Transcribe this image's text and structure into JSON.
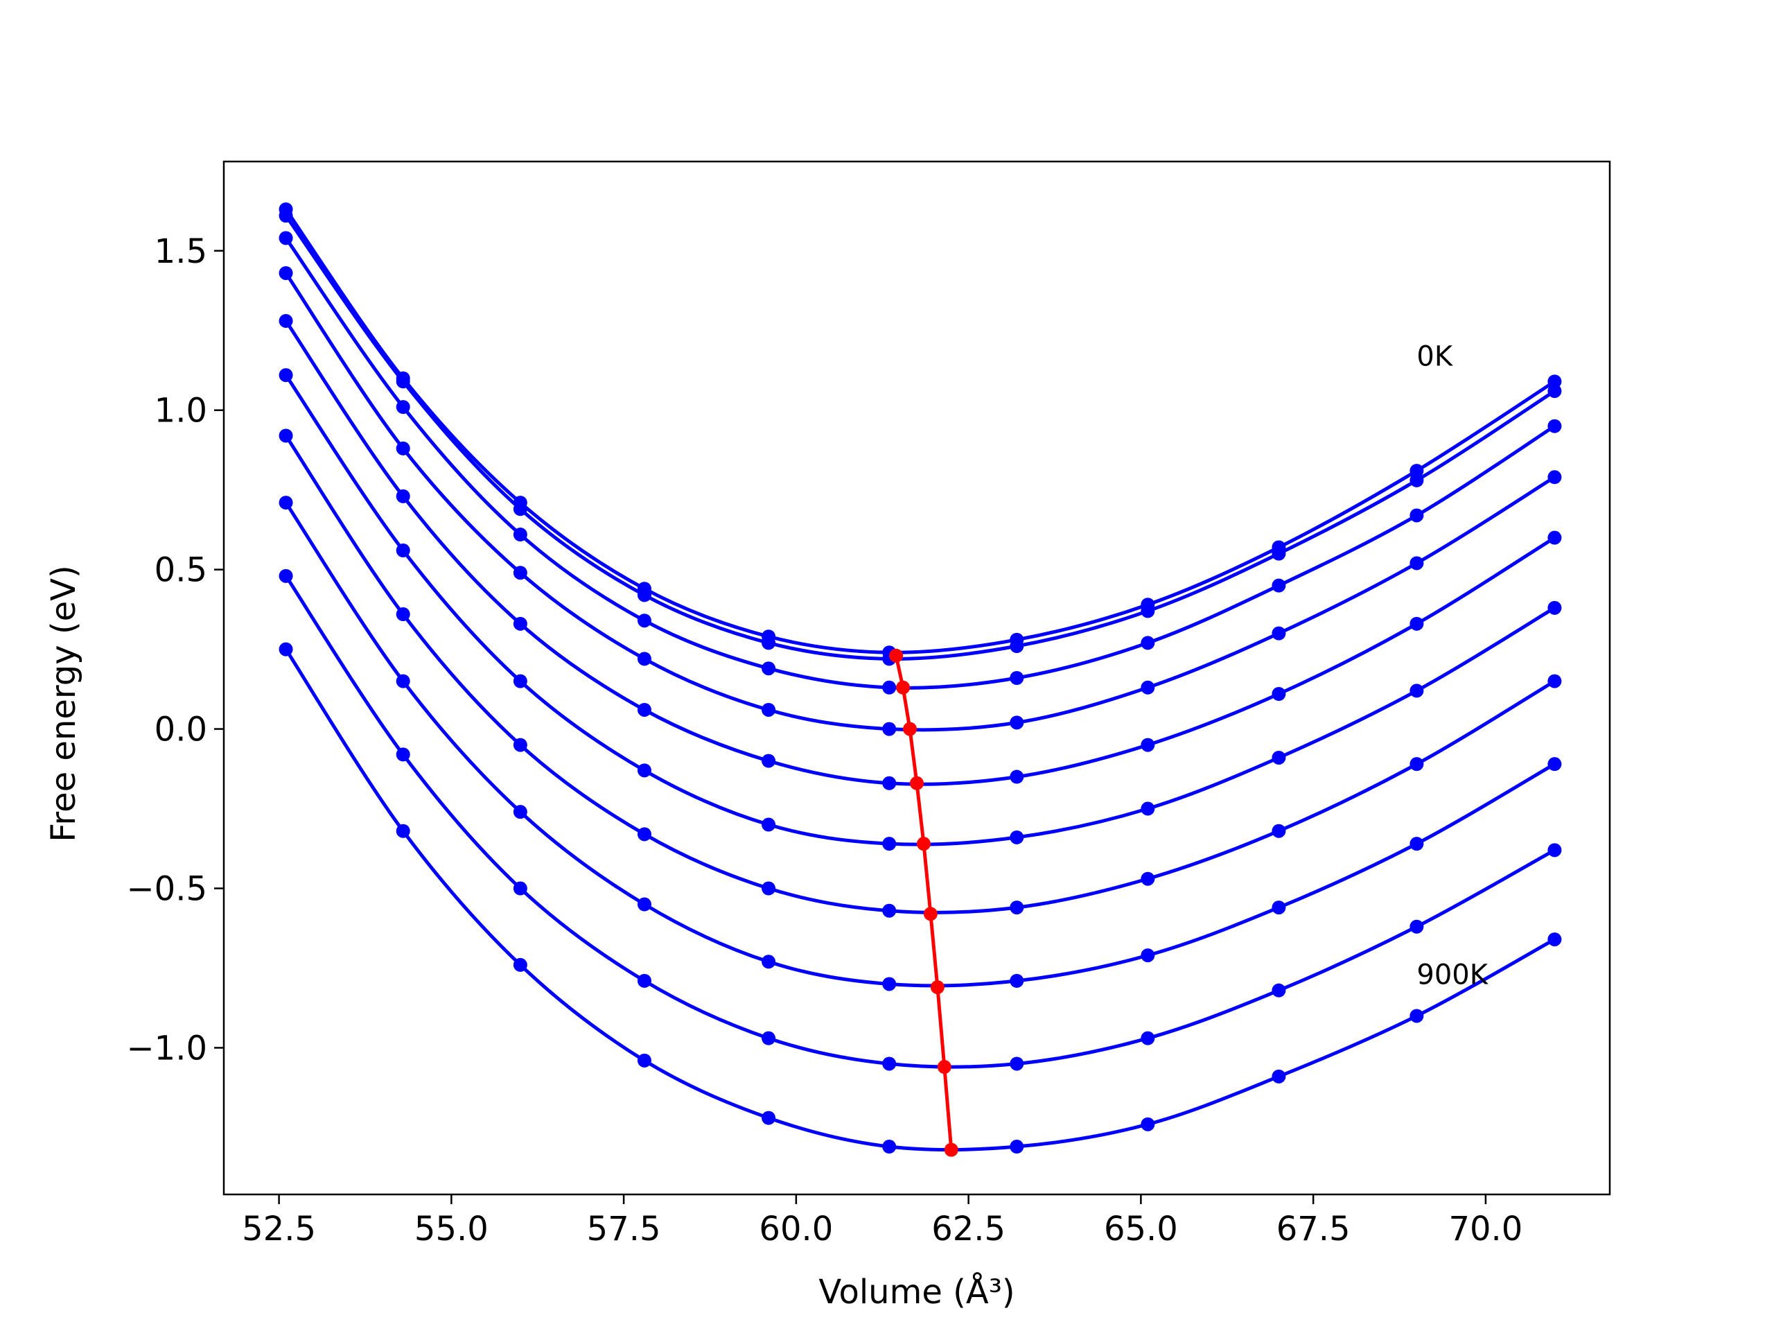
{
  "chart_data": {
    "type": "line",
    "xlabel": "Volume (Å³)",
    "ylabel": "Free energy (eV)",
    "xlim": [
      51.7,
      71.8
    ],
    "ylim": [
      -1.46,
      1.78
    ],
    "xticks": [
      52.5,
      55.0,
      57.5,
      60.0,
      62.5,
      65.0,
      67.5,
      70.0
    ],
    "xtick_labels": [
      "52.5",
      "55.0",
      "57.5",
      "60.0",
      "62.5",
      "65.0",
      "67.5",
      "70.0"
    ],
    "yticks": [
      -1.0,
      -0.5,
      0.0,
      0.5,
      1.0,
      1.5
    ],
    "ytick_labels": [
      "−1.0",
      "−0.5",
      "0.0",
      "0.5",
      "1.0",
      "1.5"
    ],
    "grid": false,
    "annotations": [
      {
        "text": "0K",
        "x": 69.0,
        "y": 1.14
      },
      {
        "text": "900K",
        "x": 69.0,
        "y": -0.8
      }
    ],
    "volumes": [
      52.6,
      54.3,
      56.0,
      57.8,
      59.6,
      61.35,
      63.2,
      65.1,
      67.0,
      69.0,
      71.0
    ],
    "series": [
      {
        "color": "#0000ff",
        "values": [
          1.63,
          1.1,
          0.71,
          0.44,
          0.29,
          0.24,
          0.28,
          0.39,
          0.57,
          0.81,
          1.09
        ]
      },
      {
        "color": "#0000ff",
        "values": [
          1.61,
          1.09,
          0.69,
          0.42,
          0.27,
          0.22,
          0.26,
          0.37,
          0.55,
          0.78,
          1.06
        ]
      },
      {
        "color": "#0000ff",
        "values": [
          1.54,
          1.01,
          0.61,
          0.34,
          0.19,
          0.13,
          0.16,
          0.27,
          0.45,
          0.67,
          0.95
        ]
      },
      {
        "color": "#0000ff",
        "values": [
          1.43,
          0.88,
          0.49,
          0.22,
          0.06,
          0.0,
          0.02,
          0.13,
          0.3,
          0.52,
          0.79
        ]
      },
      {
        "color": "#0000ff",
        "values": [
          1.28,
          0.73,
          0.33,
          0.06,
          -0.1,
          -0.17,
          -0.15,
          -0.05,
          0.11,
          0.33,
          0.6
        ]
      },
      {
        "color": "#0000ff",
        "values": [
          1.11,
          0.56,
          0.15,
          -0.13,
          -0.3,
          -0.36,
          -0.34,
          -0.25,
          -0.09,
          0.12,
          0.38
        ]
      },
      {
        "color": "#0000ff",
        "values": [
          0.92,
          0.36,
          -0.05,
          -0.33,
          -0.5,
          -0.57,
          -0.56,
          -0.47,
          -0.32,
          -0.11,
          0.15
        ]
      },
      {
        "color": "#0000ff",
        "values": [
          0.71,
          0.15,
          -0.26,
          -0.55,
          -0.73,
          -0.8,
          -0.79,
          -0.71,
          -0.56,
          -0.36,
          -0.11
        ]
      },
      {
        "color": "#0000ff",
        "values": [
          0.48,
          -0.08,
          -0.5,
          -0.79,
          -0.97,
          -1.05,
          -1.05,
          -0.97,
          -0.82,
          -0.62,
          -0.38
        ]
      },
      {
        "color": "#0000ff",
        "values": [
          0.25,
          -0.32,
          -0.74,
          -1.04,
          -1.22,
          -1.31,
          -1.31,
          -1.24,
          -1.09,
          -0.9,
          -0.66
        ]
      }
    ],
    "minima": {
      "color": "#ff0000",
      "x": [
        61.45,
        61.55,
        61.65,
        61.75,
        61.85,
        61.95,
        62.05,
        62.15,
        62.25
      ],
      "y": [
        0.23,
        0.13,
        0.0,
        -0.17,
        -0.36,
        -0.58,
        -0.81,
        -1.06,
        -1.32
      ]
    }
  }
}
